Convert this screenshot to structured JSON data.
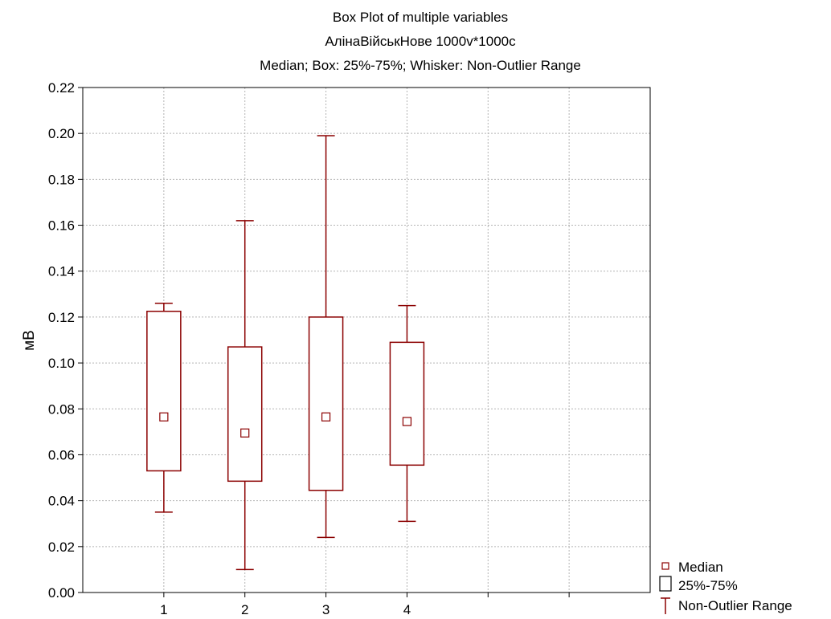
{
  "chart_data": {
    "type": "boxplot",
    "title": "Box Plot of multiple variables",
    "subtitle": "АлінаВійськНове 1000v*1000c",
    "subtitle2": "Median; Box: 25%-75%; Whisker: Non-Outlier Range",
    "xlabel": "",
    "ylabel": "мВ",
    "categories": [
      "1",
      "2",
      "3",
      "4"
    ],
    "boxes": [
      {
        "category": "1",
        "median": 0.0765,
        "q1": 0.053,
        "q3": 0.1225,
        "whisker_low": 0.035,
        "whisker_high": 0.126
      },
      {
        "category": "2",
        "median": 0.0695,
        "q1": 0.0485,
        "q3": 0.107,
        "whisker_low": 0.01,
        "whisker_high": 0.162
      },
      {
        "category": "3",
        "median": 0.0765,
        "q1": 0.0445,
        "q3": 0.12,
        "whisker_low": 0.024,
        "whisker_high": 0.199
      },
      {
        "category": "4",
        "median": 0.0745,
        "q1": 0.0555,
        "q3": 0.109,
        "whisker_low": 0.031,
        "whisker_high": 0.125
      }
    ],
    "x_positions": [
      1,
      2,
      3,
      4
    ],
    "xlim": [
      0,
      7
    ],
    "ylim": [
      0,
      0.22
    ],
    "y_ticks": [
      "0.00",
      "0.02",
      "0.04",
      "0.06",
      "0.08",
      "0.10",
      "0.12",
      "0.14",
      "0.16",
      "0.18",
      "0.20",
      "0.22"
    ],
    "y_tick_values": [
      0,
      0.02,
      0.04,
      0.06,
      0.08,
      0.1,
      0.12,
      0.14,
      0.16,
      0.18,
      0.2,
      0.22
    ],
    "x_grid_values": [
      1,
      2,
      3,
      4,
      5,
      6
    ],
    "grid": true,
    "legend": {
      "position": "bottom-right",
      "items": [
        {
          "symbol": "median",
          "label": "Median"
        },
        {
          "symbol": "box",
          "label": "25%-75%"
        },
        {
          "symbol": "whisker",
          "label": "Non-Outlier Range"
        }
      ]
    },
    "colors": {
      "series": "#8b0000",
      "grid": "#b4b4b4",
      "frame": "#000000"
    }
  }
}
